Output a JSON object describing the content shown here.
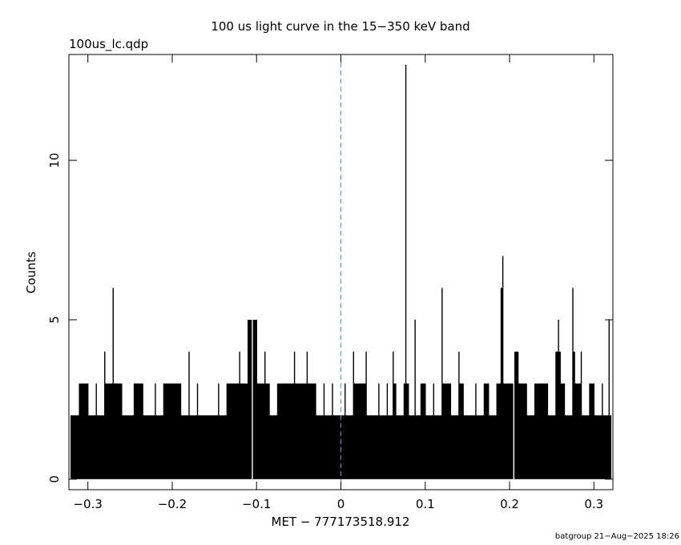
{
  "chart_data": {
    "type": "lightcurve",
    "title": "100 us light curve in the 15−350 keV band",
    "subtitle": "100us_lc.qdp",
    "x_label": "MET − 777173518.912",
    "y_label": "Counts",
    "footer": "batgroup 21−Aug−2025 18:26",
    "xlim": [
      -0.3225,
      0.3225
    ],
    "ylim": [
      -0.33,
      13.32
    ],
    "xticks": [
      {
        "value": -0.3,
        "label": "−0.3"
      },
      {
        "value": -0.2,
        "label": "−0.2"
      },
      {
        "value": -0.1,
        "label": "−0.1"
      },
      0,
      0.1,
      0.2,
      0.3
    ],
    "yticks": [
      0,
      5,
      10
    ],
    "vline": 0,
    "vline_color": "#2aa8c8",
    "series": [
      {
        "color": "#000000",
        "x": [
          -0.32,
          -0.315,
          -0.31,
          -0.305,
          -0.3,
          -0.295,
          -0.29,
          -0.285,
          -0.28,
          -0.275,
          -0.27,
          -0.268,
          -0.265,
          -0.26,
          -0.255,
          -0.25,
          -0.245,
          -0.24,
          -0.235,
          -0.23,
          -0.225,
          -0.22,
          -0.215,
          -0.21,
          -0.205,
          -0.2,
          -0.195,
          -0.19,
          -0.185,
          -0.18,
          -0.175,
          -0.17,
          -0.165,
          -0.16,
          -0.155,
          -0.15,
          -0.145,
          -0.14,
          -0.135,
          -0.13,
          -0.125,
          -0.12,
          -0.115,
          -0.11,
          -0.105,
          -0.1,
          -0.095,
          -0.09,
          -0.085,
          -0.08,
          -0.075,
          -0.07,
          -0.065,
          -0.06,
          -0.055,
          -0.05,
          -0.045,
          -0.04,
          -0.035,
          -0.03,
          -0.025,
          -0.02,
          -0.015,
          -0.01,
          -0.005,
          0,
          0.005,
          0.01,
          0.015,
          0.02,
          0.025,
          0.03,
          0.035,
          0.04,
          0.045,
          0.05,
          0.055,
          0.06,
          0.062,
          0.065,
          0.07,
          0.075,
          0.077,
          0.08,
          0.085,
          0.088,
          0.09,
          0.095,
          0.1,
          0.105,
          0.11,
          0.115,
          0.12,
          0.125,
          0.13,
          0.135,
          0.14,
          0.145,
          0.15,
          0.155,
          0.16,
          0.165,
          0.17,
          0.175,
          0.18,
          0.185,
          0.19,
          0.192,
          0.195,
          0.2,
          0.205,
          0.21,
          0.215,
          0.22,
          0.225,
          0.23,
          0.235,
          0.24,
          0.245,
          0.25,
          0.255,
          0.258,
          0.26,
          0.265,
          0.27,
          0.275,
          0.277,
          0.28,
          0.285,
          0.29,
          0.295,
          0.3,
          0.305,
          0.31,
          0.315,
          0.318,
          0.32
        ],
        "values": [
          2,
          2,
          3,
          3,
          3,
          2,
          3,
          2,
          4,
          3,
          6,
          3,
          3,
          3,
          2,
          2,
          3,
          3,
          3,
          2,
          2,
          3,
          2,
          3,
          3,
          3,
          3,
          3,
          2,
          4,
          2,
          3,
          2,
          2,
          2,
          2,
          3,
          2,
          3,
          3,
          3,
          4,
          3,
          5,
          0,
          5,
          3,
          4,
          3,
          2,
          3,
          3,
          3,
          3,
          4,
          3,
          3,
          4,
          3,
          3,
          2,
          3,
          2,
          3,
          2,
          2,
          3,
          2,
          4,
          3,
          3,
          4,
          2,
          2,
          3,
          2,
          3,
          2,
          4,
          3,
          2,
          3,
          13,
          3,
          2,
          5,
          2,
          3,
          3,
          2,
          3,
          2,
          6,
          3,
          3,
          2,
          4,
          3,
          2,
          2,
          3,
          2,
          3,
          3,
          2,
          3,
          6,
          7,
          3,
          3,
          0,
          4,
          3,
          3,
          2,
          3,
          3,
          3,
          3,
          2,
          4,
          5,
          4,
          3,
          2,
          6,
          4,
          3,
          4,
          2,
          3,
          3,
          2,
          3,
          2,
          5,
          2
        ]
      }
    ]
  }
}
